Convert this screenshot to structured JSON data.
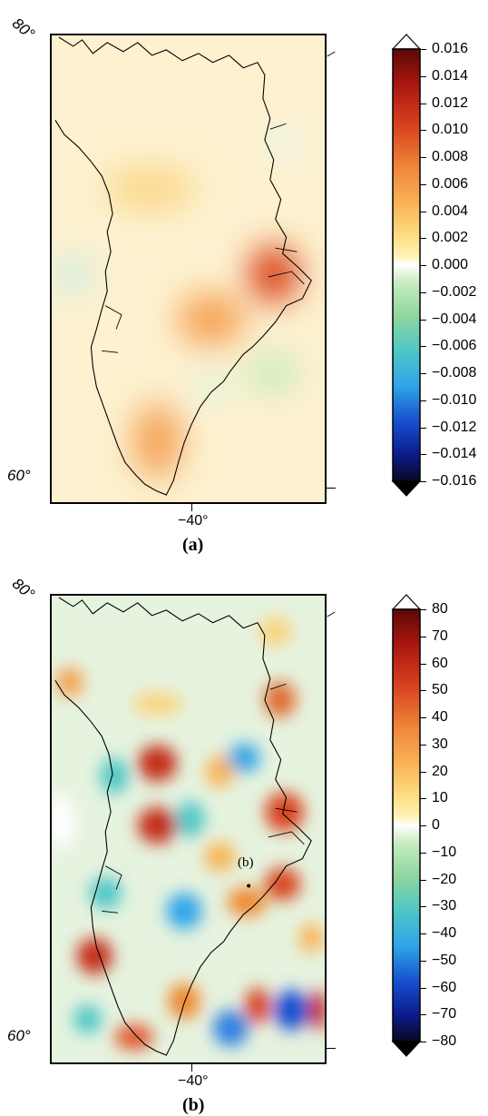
{
  "panels": [
    {
      "caption": "(a)",
      "lat_top_label": "80°",
      "lat_bottom_label": "60°",
      "lon_label": "−40°",
      "colorbar": {
        "max": 0.016,
        "min": -0.016,
        "labels": [
          "0.016",
          "0.014",
          "0.012",
          "0.010",
          "0.008",
          "0.006",
          "0.004",
          "0.002",
          "0.000",
          "−0.002",
          "−0.004",
          "−0.006",
          "−0.008",
          "−0.010",
          "−0.012",
          "−0.014",
          "−0.016"
        ]
      },
      "anomalies": [
        {
          "name": "east-coast-high",
          "value": 0.012
        },
        {
          "name": "central-high",
          "value": 0.007
        },
        {
          "name": "south-high",
          "value": 0.008
        },
        {
          "name": "north-central-high",
          "value": 0.005
        }
      ]
    },
    {
      "caption": "(b)",
      "lat_top_label": "80°",
      "lat_bottom_label": "60°",
      "lon_label": "−40°",
      "point_label": "(b)",
      "colorbar": {
        "max": 80,
        "min": -80,
        "labels": [
          "80",
          "70",
          "60",
          "50",
          "40",
          "30",
          "20",
          "10",
          "0",
          "−10",
          "−20",
          "−30",
          "−40",
          "−50",
          "−60",
          "−70",
          "−80"
        ]
      }
    }
  ],
  "colors": {
    "palette": [
      "#08081f",
      "#0c1a8a",
      "#1750d0",
      "#2fa4e8",
      "#4dc6c6",
      "#8cd6a0",
      "#c8ecc0",
      "#ffffff",
      "#fff3b8",
      "#fddc80",
      "#f9b457",
      "#f08a3c",
      "#d9431f",
      "#a8160e",
      "#5a0a06"
    ]
  }
}
